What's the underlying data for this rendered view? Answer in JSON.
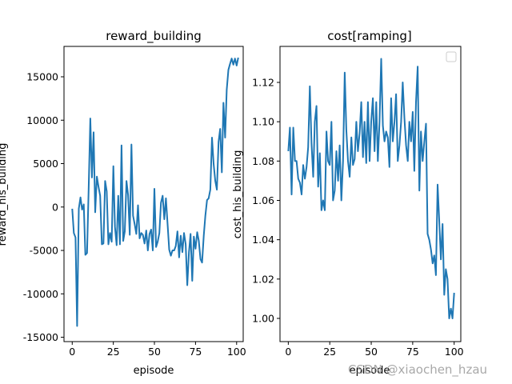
{
  "watermark": "CSDN @xiaochen_hzau",
  "chart_data": [
    {
      "type": "line",
      "title": "reward_building",
      "xlabel": "episode",
      "ylabel": "reward_his_building",
      "xlim": [
        -5,
        104
      ],
      "ylim": [
        -15500,
        18500
      ],
      "xticks": [
        0,
        25,
        50,
        75,
        100
      ],
      "yticks": [
        -15000,
        -10000,
        -5000,
        0,
        5000,
        10000,
        15000
      ],
      "color": "#1f77b4",
      "grid": false,
      "legend": null,
      "x_start": 0,
      "values": [
        -200,
        -3000,
        -3500,
        -13700,
        -200,
        1100,
        -300,
        300,
        -5500,
        -5300,
        2000,
        10200,
        3400,
        8600,
        -600,
        3500,
        2300,
        1300,
        -4300,
        -4200,
        3000,
        1800,
        -4300,
        -3000,
        -4000,
        4700,
        -2300,
        -4400,
        1300,
        -4300,
        7100,
        -3900,
        -2800,
        3000,
        1400,
        -3200,
        7200,
        -1000,
        -2000,
        -3100,
        200,
        -3600,
        -3000,
        -3200,
        -4200,
        -2700,
        -5000,
        -3100,
        -2600,
        -5000,
        2100,
        -4600,
        -4000,
        -3000,
        500,
        1300,
        -1400,
        1000,
        -2000,
        -4900,
        -5600,
        -5000,
        -5000,
        -4500,
        -2800,
        -5800,
        -3300,
        -5200,
        -3000,
        -4300,
        -9000,
        -5200,
        -3100,
        -8500,
        -3400,
        -4800,
        -2900,
        -3900,
        -6000,
        -6400,
        -3300,
        -1000,
        800,
        1000,
        2000,
        8000,
        5000,
        3000,
        2000,
        7500,
        9000,
        4000,
        12000,
        8000,
        13500,
        15800,
        16500,
        17100,
        16400,
        17100,
        16300,
        17200
      ]
    },
    {
      "type": "line",
      "title": "cost[ramping]",
      "xlabel": "episode",
      "ylabel": "cost_his_building",
      "xlim": [
        -5,
        104
      ],
      "ylim": [
        0.9882,
        1.1383
      ],
      "xticks": [
        0,
        25,
        50,
        75,
        100
      ],
      "yticks": [
        1.0,
        1.02,
        1.04,
        1.06,
        1.08,
        1.1,
        1.12
      ],
      "yticks_labels": [
        "1.00",
        "1.02",
        "1.04",
        "1.06",
        "1.08",
        "1.10",
        "1.12"
      ],
      "color": "#1f77b4",
      "grid": false,
      "legend": "top-right (empty)",
      "x_start": 0,
      "values": [
        1.085,
        1.097,
        1.063,
        1.097,
        1.08,
        1.08,
        1.071,
        1.069,
        1.063,
        1.078,
        1.071,
        1.077,
        1.087,
        1.118,
        1.089,
        1.072,
        1.1,
        1.108,
        1.067,
        1.084,
        1.055,
        1.06,
        1.055,
        1.095,
        1.08,
        1.078,
        1.1,
        1.06,
        1.065,
        1.085,
        1.07,
        1.088,
        1.06,
        1.08,
        1.125,
        1.096,
        1.08,
        1.072,
        1.092,
        1.078,
        1.081,
        1.1,
        1.085,
        1.094,
        1.11,
        1.082,
        1.1,
        1.079,
        1.11,
        1.08,
        1.1,
        1.112,
        1.085,
        1.11,
        1.08,
        1.1,
        1.132,
        1.098,
        1.09,
        1.095,
        1.092,
        1.077,
        1.112,
        1.09,
        1.1,
        1.114,
        1.08,
        1.088,
        1.1,
        1.12,
        1.102,
        1.088,
        1.08,
        1.1,
        1.09,
        1.105,
        1.075,
        1.11,
        1.128,
        1.065,
        1.095,
        1.08,
        1.09,
        1.099,
        1.043,
        1.04,
        1.035,
        1.028,
        1.032,
        1.022,
        1.068,
        1.05,
        1.03,
        1.048,
        1.012,
        1.025,
        1.02,
        1.0,
        1.005,
        1.0,
        1.013
      ]
    }
  ]
}
